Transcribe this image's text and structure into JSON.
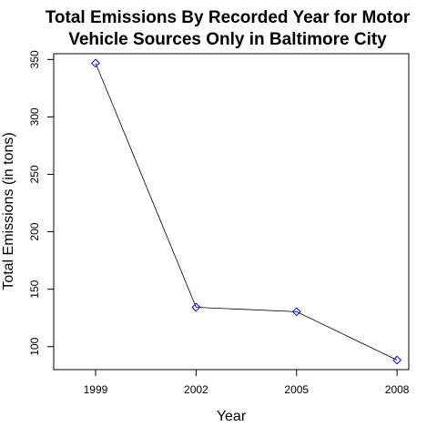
{
  "chart_data": {
    "type": "line",
    "title_lines": [
      "Total Emissions By Recorded Year for Motor",
      "Vehicle Sources Only in Baltimore City"
    ],
    "xlabel": "Year",
    "ylabel": "Total Emissions (in tons)",
    "x": [
      1999,
      2002,
      2005,
      2008
    ],
    "xticks": [
      "1999",
      "2002",
      "2005",
      "2008"
    ],
    "yticks": [
      100,
      150,
      200,
      250,
      300,
      350
    ],
    "ylim": [
      80,
      355
    ],
    "series": [
      {
        "values": [
          346.8,
          134.3,
          130.4,
          88.3
        ]
      }
    ],
    "colors": {
      "line": "#000000",
      "marker": "#0000ff",
      "frame": "#000000"
    },
    "marker": "diamond-open",
    "grid": false,
    "legend": "none"
  }
}
